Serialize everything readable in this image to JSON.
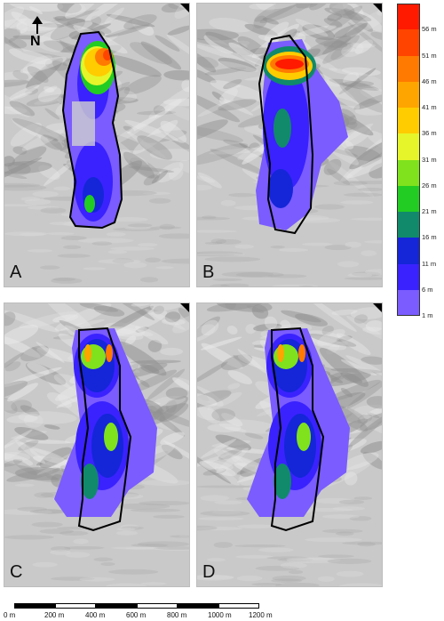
{
  "panels": [
    {
      "letter": "A"
    },
    {
      "letter": "B"
    },
    {
      "letter": "C"
    },
    {
      "letter": "D"
    }
  ],
  "north_arrow": {
    "label": "N",
    "icon": "north-arrow-icon"
  },
  "legend": {
    "classes": [
      {
        "label": "56 m",
        "color": "#ff1a00"
      },
      {
        "label": "51 m",
        "color": "#ff4400"
      },
      {
        "label": "46 m",
        "color": "#ff7a00"
      },
      {
        "label": "41 m",
        "color": "#ffa500"
      },
      {
        "label": "36 m",
        "color": "#ffcc00"
      },
      {
        "label": "31 m",
        "color": "#e5f52a"
      },
      {
        "label": "26 m",
        "color": "#7fe21c"
      },
      {
        "label": "21 m",
        "color": "#22cc22"
      },
      {
        "label": "16 m",
        "color": "#108a6a"
      },
      {
        "label": "11 m",
        "color": "#1426d8"
      },
      {
        "label": "6 m",
        "color": "#3a22ff"
      },
      {
        "label": "1 m",
        "color": "#7a5cff"
      }
    ]
  },
  "scale_bar": {
    "labels": [
      "0 m",
      "200 m",
      "400 m",
      "600 m",
      "800 m",
      "1000 m",
      "1200 m"
    ]
  }
}
